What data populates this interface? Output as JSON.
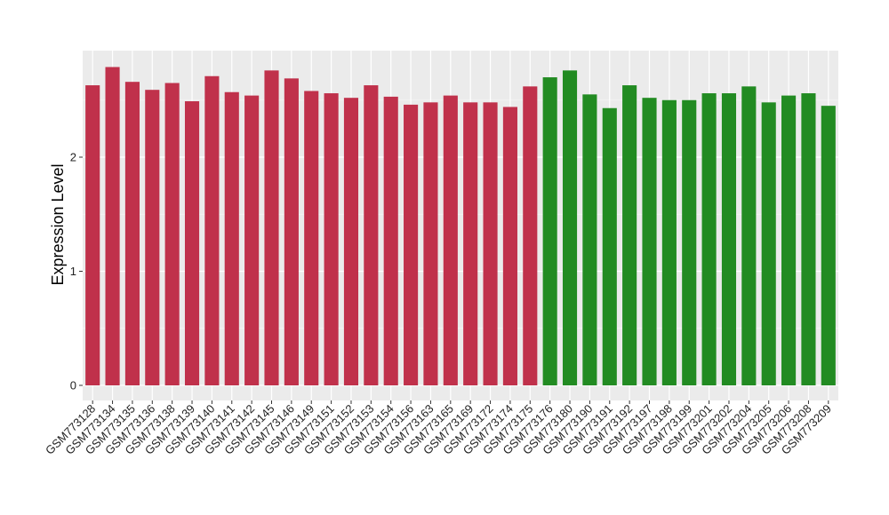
{
  "chart_data": {
    "type": "bar",
    "ylabel": "Expression Level",
    "xlabel": "",
    "title": "",
    "ylim": [
      -0.13,
      2.93
    ],
    "y_ticks": [
      0,
      1,
      2
    ],
    "grid": true,
    "panel_background": "#EBEBEB",
    "colors": {
      "group1": "#C0314B",
      "group2": "#228B22"
    },
    "categories": [
      "GSM773128",
      "GSM773134",
      "GSM773135",
      "GSM773136",
      "GSM773138",
      "GSM773139",
      "GSM773140",
      "GSM773141",
      "GSM773142",
      "GSM773145",
      "GSM773146",
      "GSM773149",
      "GSM773151",
      "GSM773152",
      "GSM773153",
      "GSM773154",
      "GSM773156",
      "GSM773163",
      "GSM773165",
      "GSM773169",
      "GSM773172",
      "GSM773174",
      "GSM773175",
      "GSM773176",
      "GSM773180",
      "GSM773190",
      "GSM773191",
      "GSM773192",
      "GSM773197",
      "GSM773198",
      "GSM773199",
      "GSM773201",
      "GSM773202",
      "GSM773204",
      "GSM773205",
      "GSM773206",
      "GSM773208",
      "GSM773209"
    ],
    "values": [
      2.63,
      2.79,
      2.66,
      2.59,
      2.65,
      2.49,
      2.71,
      2.57,
      2.54,
      2.76,
      2.69,
      2.58,
      2.56,
      2.52,
      2.63,
      2.53,
      2.46,
      2.48,
      2.54,
      2.48,
      2.48,
      2.44,
      2.62,
      2.7,
      2.76,
      2.55,
      2.43,
      2.63,
      2.52,
      2.5,
      2.5,
      2.56,
      2.56,
      2.62,
      2.48,
      2.54,
      2.56,
      2.45
    ],
    "groups": [
      1,
      1,
      1,
      1,
      1,
      1,
      1,
      1,
      1,
      1,
      1,
      1,
      1,
      1,
      1,
      1,
      1,
      1,
      1,
      1,
      1,
      1,
      1,
      2,
      2,
      2,
      2,
      2,
      2,
      2,
      2,
      2,
      2,
      2,
      2,
      2,
      2,
      2
    ]
  }
}
